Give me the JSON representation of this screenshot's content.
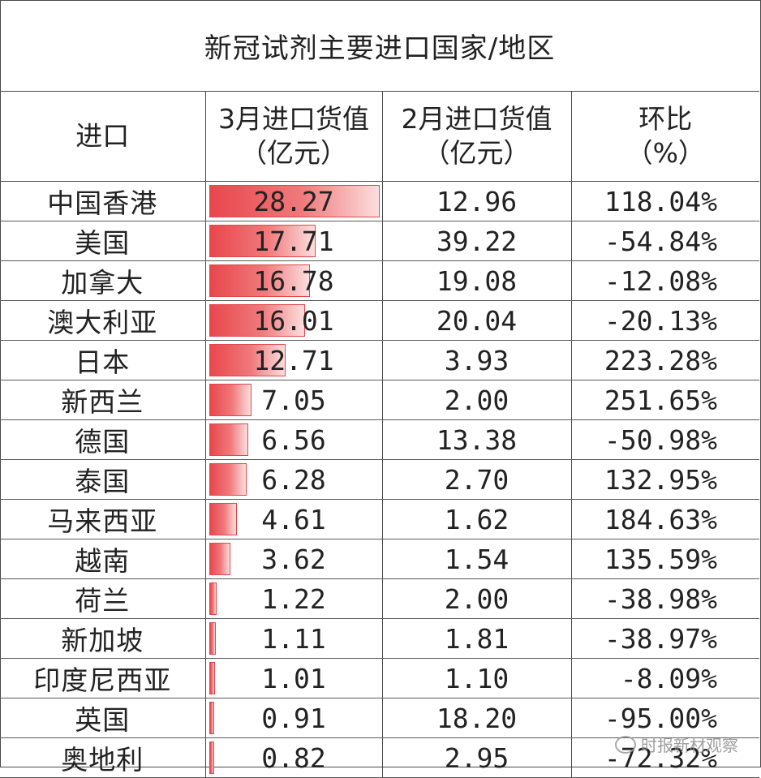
{
  "title": "新冠试剂主要进口国家/地区",
  "headers": {
    "col1": "进口",
    "col2_l1": "3月进口货值",
    "col2_l2": "（亿元）",
    "col3_l1": "2月进口货值",
    "col3_l2": "（亿元）",
    "col4_l1": "环比",
    "col4_l2": "（%）"
  },
  "chart_data": {
    "type": "table",
    "title": "新冠试剂主要进口国家/地区",
    "columns": [
      "进口",
      "3月进口货值（亿元）",
      "2月进口货值（亿元）",
      "环比（%）"
    ],
    "bar_column": "3月进口货值（亿元）",
    "bar_color": "#e8474c",
    "bar_max": 28.27,
    "rows": [
      {
        "name": "中国香港",
        "mar": "28.27",
        "feb": "12.96",
        "mom": "118.04%"
      },
      {
        "name": "美国",
        "mar": "17.71",
        "feb": "39.22",
        "mom": "-54.84%"
      },
      {
        "name": "加拿大",
        "mar": "16.78",
        "feb": "19.08",
        "mom": "-12.08%"
      },
      {
        "name": "澳大利亚",
        "mar": "16.01",
        "feb": "20.04",
        "mom": "-20.13%"
      },
      {
        "name": "日本",
        "mar": "12.71",
        "feb": "3.93",
        "mom": "223.28%"
      },
      {
        "name": "新西兰",
        "mar": "7.05",
        "feb": "2.00",
        "mom": "251.65%"
      },
      {
        "name": "德国",
        "mar": "6.56",
        "feb": "13.38",
        "mom": "-50.98%"
      },
      {
        "name": "泰国",
        "mar": "6.28",
        "feb": "2.70",
        "mom": "132.95%"
      },
      {
        "name": "马来西亚",
        "mar": "4.61",
        "feb": "1.62",
        "mom": "184.63%"
      },
      {
        "name": "越南",
        "mar": "3.62",
        "feb": "1.54",
        "mom": "135.59%"
      },
      {
        "name": "荷兰",
        "mar": "1.22",
        "feb": "2.00",
        "mom": "-38.98%"
      },
      {
        "name": "新加坡",
        "mar": "1.11",
        "feb": "1.81",
        "mom": "-38.97%"
      },
      {
        "name": "印度尼西亚",
        "mar": "1.01",
        "feb": "1.10",
        "mom": "-8.09%"
      },
      {
        "name": "英国",
        "mar": "0.91",
        "feb": "18.20",
        "mom": "-95.00%"
      },
      {
        "name": "奥地利",
        "mar": "0.82",
        "feb": "2.95",
        "mom": "-72.32%"
      }
    ]
  },
  "watermark": "时报新材观察"
}
